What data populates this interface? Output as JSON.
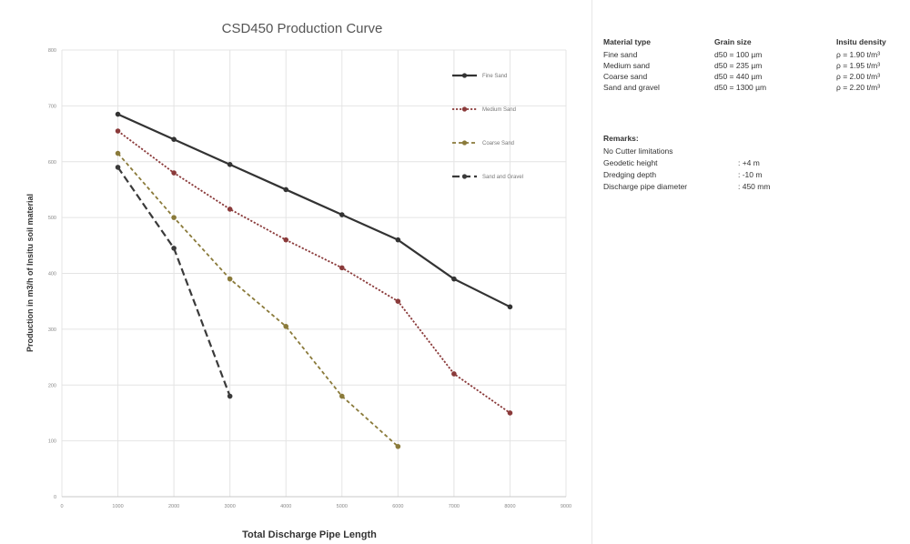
{
  "chart_data": {
    "type": "line",
    "title": "CSD450 Production Curve",
    "xlabel": "Total Discharge Pipe Length",
    "ylabel": "Production in m3/h of Insitu soil material",
    "xlim": [
      0,
      9000
    ],
    "ylim": [
      0,
      800
    ],
    "xticks": [
      0,
      1000,
      2000,
      3000,
      4000,
      5000,
      6000,
      7000,
      8000,
      9000
    ],
    "yticks": [
      0,
      100,
      200,
      300,
      400,
      500,
      600,
      700,
      800
    ],
    "grid": true,
    "legend_position": "inside-top-right",
    "series": [
      {
        "name": "Fine Sand",
        "color": "#333333",
        "dash": "solid",
        "x": [
          1000,
          2000,
          3000,
          4000,
          5000,
          6000,
          7000,
          8000
        ],
        "y": [
          685,
          640,
          595,
          550,
          505,
          460,
          390,
          340
        ]
      },
      {
        "name": "Medium Sand",
        "color": "#8a3a3a",
        "dash": "dotted",
        "x": [
          1000,
          2000,
          3000,
          4000,
          5000,
          6000,
          7000,
          8000
        ],
        "y": [
          655,
          580,
          515,
          460,
          410,
          350,
          220,
          150
        ]
      },
      {
        "name": "Coarse Sand",
        "color": "#8a7a3a",
        "dash": "dashed-short",
        "x": [
          1000,
          2000,
          3000,
          4000,
          5000,
          6000
        ],
        "y": [
          615,
          500,
          390,
          305,
          180,
          90
        ]
      },
      {
        "name": "Sand and Gravel",
        "color": "#3a3a3a",
        "dash": "dashed-long",
        "x": [
          1000,
          2000,
          3000
        ],
        "y": [
          590,
          445,
          180
        ]
      }
    ]
  },
  "info": {
    "headers": [
      "Material type",
      "Grain size",
      "Insitu density"
    ],
    "rows": [
      [
        "Fine sand",
        "d50 = 100 µm",
        "ρ = 1.90 t/m³"
      ],
      [
        "Medium sand",
        "d50 = 235 µm",
        "ρ = 1.95 t/m³"
      ],
      [
        "Coarse sand",
        "d50 = 440 µm",
        "ρ = 2.00 t/m³"
      ],
      [
        "Sand and gravel",
        "d50 = 1300 µm",
        "ρ = 2.20 t/m³"
      ]
    ],
    "remarks_title": "Remarks:",
    "remarks_line": "No Cutter limitations",
    "params": [
      {
        "label": "Geodetic height",
        "value": ": +4 m"
      },
      {
        "label": "Dredging depth",
        "value": ": -10 m"
      },
      {
        "label": "Discharge pipe diameter",
        "value": ": 450 mm"
      }
    ]
  }
}
